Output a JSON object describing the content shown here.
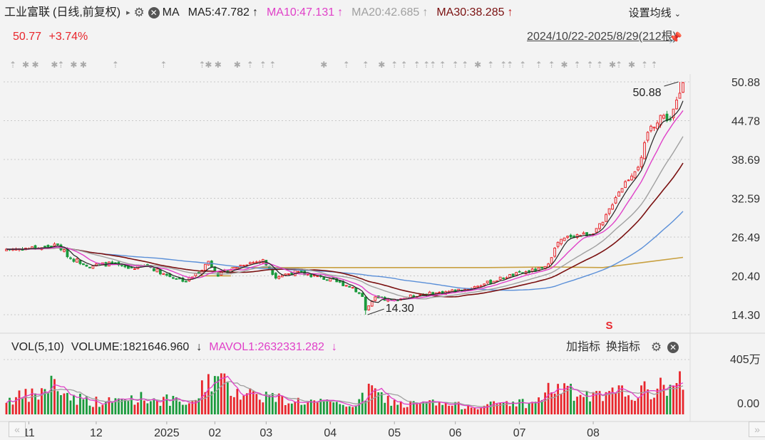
{
  "header": {
    "stock_name": "工业富联",
    "period": "(日线,前复权)",
    "ma_label": "MA",
    "ma5": "MA5:47.782",
    "ma10": "MA10:47.131",
    "ma20": "MA20:42.685",
    "ma30": "MA30:38.285",
    "arrow_up": "↑",
    "settings_label": "设置均线",
    "price": "50.77",
    "change": "+3.74%",
    "date_range": "2024/10/22-2025/8/29(212根)"
  },
  "volume_header": {
    "vol_label": "VOL(5,10)",
    "volume": "VOLUME:1821646.960",
    "volume_arrow": "↓",
    "mavol": "MAVOL1:2632331.282",
    "mavol_arrow": "↓",
    "add_indicator": "加指标",
    "switch_indicator": "换指标"
  },
  "colors": {
    "up": "#e8262c",
    "down": "#1a9a3c",
    "ma5": "#222222",
    "ma10": "#e040c8",
    "ma20": "#a0a0a0",
    "ma30": "#7a1010",
    "ma60": "#5a8fd8",
    "cost": "#c8a040",
    "volume_ma5": "#e040c8",
    "volume_ma10": "#a0a0a0"
  },
  "chart_data": {
    "type": "candlestick",
    "price_axis_ticks": [
      "50.88",
      "44.78",
      "38.69",
      "32.59",
      "26.49",
      "20.40",
      "14.30"
    ],
    "price_ylim": [
      14.3,
      50.88
    ],
    "volume_axis_ticks": [
      "405万",
      "0.00"
    ],
    "volume_ylim": [
      0,
      4050000
    ],
    "x_tick_labels": [
      {
        "label": "11",
        "index": 7
      },
      {
        "label": "12",
        "index": 28
      },
      {
        "label": "2025",
        "index": 50
      },
      {
        "label": "02",
        "index": 65
      },
      {
        "label": "03",
        "index": 81
      },
      {
        "label": "04",
        "index": 101
      },
      {
        "label": "05",
        "index": 121
      },
      {
        "label": "06",
        "index": 140
      },
      {
        "label": "07",
        "index": 160
      },
      {
        "label": "08",
        "index": 183
      }
    ],
    "annotations": [
      {
        "text": "50.88",
        "type": "max",
        "index": 210,
        "value": 50.88
      },
      {
        "text": "14.30",
        "type": "min",
        "index": 112,
        "value": 14.3
      }
    ],
    "event_marker": {
      "text": "S",
      "index": 188
    },
    "close_keypoints": [
      [
        0,
        24.6
      ],
      [
        10,
        24.8
      ],
      [
        16,
        25.2
      ],
      [
        20,
        23.2
      ],
      [
        26,
        22.0
      ],
      [
        32,
        22.3
      ],
      [
        38,
        21.6
      ],
      [
        44,
        22.0
      ],
      [
        50,
        20.5
      ],
      [
        56,
        19.6
      ],
      [
        60,
        21.0
      ],
      [
        63,
        22.7
      ],
      [
        66,
        20.6
      ],
      [
        70,
        21.4
      ],
      [
        74,
        22.3
      ],
      [
        80,
        22.8
      ],
      [
        84,
        20.3
      ],
      [
        90,
        21.0
      ],
      [
        96,
        20.4
      ],
      [
        102,
        19.6
      ],
      [
        108,
        18.6
      ],
      [
        111,
        17.2
      ],
      [
        112,
        15.0
      ],
      [
        115,
        16.9
      ],
      [
        120,
        16.5
      ],
      [
        128,
        17.4
      ],
      [
        136,
        17.8
      ],
      [
        144,
        18.4
      ],
      [
        150,
        19.3
      ],
      [
        156,
        20.3
      ],
      [
        162,
        21.0
      ],
      [
        168,
        21.6
      ],
      [
        172,
        25.6
      ],
      [
        176,
        26.7
      ],
      [
        182,
        27.0
      ],
      [
        186,
        28.6
      ],
      [
        190,
        33.0
      ],
      [
        194,
        35.8
      ],
      [
        198,
        38.5
      ],
      [
        200,
        43.0
      ],
      [
        204,
        45.6
      ],
      [
        207,
        45.0
      ],
      [
        210,
        48.9
      ],
      [
        211,
        50.77
      ]
    ],
    "volume_keypoints": [
      [
        0,
        1100000
      ],
      [
        10,
        1450000
      ],
      [
        14,
        2300000
      ],
      [
        20,
        1300000
      ],
      [
        30,
        850000
      ],
      [
        40,
        1250000
      ],
      [
        50,
        1050000
      ],
      [
        58,
        700000
      ],
      [
        63,
        2800000
      ],
      [
        68,
        2200000
      ],
      [
        74,
        1650000
      ],
      [
        80,
        1450000
      ],
      [
        86,
        1100000
      ],
      [
        96,
        900000
      ],
      [
        104,
        700000
      ],
      [
        110,
        800000
      ],
      [
        113,
        1900000
      ],
      [
        118,
        1150000
      ],
      [
        124,
        700000
      ],
      [
        132,
        850000
      ],
      [
        140,
        650000
      ],
      [
        150,
        650000
      ],
      [
        158,
        950000
      ],
      [
        164,
        750000
      ],
      [
        168,
        1600000
      ],
      [
        172,
        2100000
      ],
      [
        178,
        1350000
      ],
      [
        186,
        1250000
      ],
      [
        192,
        1650000
      ],
      [
        198,
        1650000
      ],
      [
        204,
        1950000
      ],
      [
        210,
        2500000
      ],
      [
        211,
        1820000
      ]
    ],
    "cost_line": [
      [
        70,
        21.7
      ],
      [
        150,
        21.7
      ],
      [
        170,
        21.8
      ],
      [
        186,
        21.7
      ],
      [
        200,
        22.6
      ],
      [
        211,
        23.3
      ]
    ],
    "n_bars": 212
  },
  "nav": {
    "prev": "«",
    "next": "»"
  }
}
